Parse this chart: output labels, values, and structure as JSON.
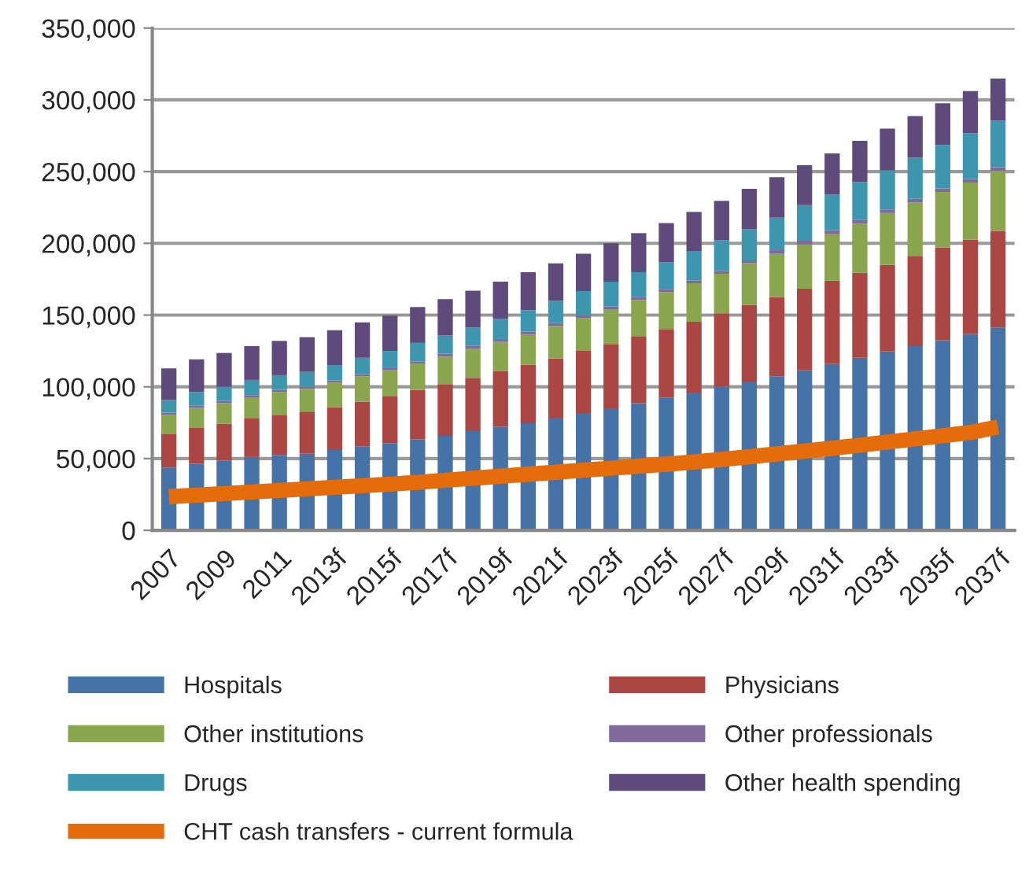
{
  "chart_data": {
    "type": "bar",
    "stacked": true,
    "categories": [
      "2007",
      null,
      "2009",
      null,
      "2011",
      null,
      "2013f",
      null,
      "2015f",
      null,
      "2017f",
      null,
      "2019f",
      null,
      "2021f",
      null,
      "2023f",
      null,
      "2025f",
      null,
      "2027f",
      null,
      "2029f",
      null,
      "2031f",
      null,
      "2033f",
      null,
      "2035f",
      null,
      "2037f"
    ],
    "series": [
      {
        "name": "Hospitals",
        "color": "#4572a7",
        "values": [
          43700,
          46300,
          48500,
          51100,
          52600,
          53300,
          55900,
          58500,
          60700,
          63300,
          65800,
          69100,
          72100,
          74600,
          78400,
          81700,
          85000,
          88600,
          92300,
          96000,
          100000,
          103700,
          107400,
          111500,
          115900,
          120300,
          124700,
          128400,
          132500,
          136900,
          141300
        ]
      },
      {
        "name": "Physicians",
        "color": "#aa4643",
        "values": [
          23200,
          25000,
          25800,
          27200,
          27900,
          29400,
          29800,
          31200,
          33000,
          34500,
          36100,
          37200,
          38900,
          40900,
          41500,
          43300,
          44800,
          46700,
          47900,
          49300,
          51200,
          53400,
          55200,
          56900,
          58100,
          59200,
          60300,
          62900,
          64600,
          65700,
          67300
        ]
      },
      {
        "name": "Other institutions",
        "color": "#89a54e",
        "values": [
          13600,
          14000,
          14300,
          14400,
          15900,
          15900,
          17300,
          17700,
          17800,
          18400,
          19100,
          20200,
          20300,
          20900,
          22500,
          22900,
          24300,
          25100,
          25700,
          26900,
          27600,
          29000,
          30100,
          30900,
          32700,
          34200,
          36100,
          37200,
          38700,
          39800,
          42000
        ]
      },
      {
        "name": "Other professionals",
        "color": "#80699b",
        "values": [
          1500,
          1500,
          1500,
          1500,
          1500,
          1500,
          1500,
          1500,
          1500,
          1500,
          2000,
          2000,
          2000,
          2000,
          2000,
          2000,
          2000,
          2000,
          2000,
          2000,
          2000,
          2000,
          2500,
          2500,
          2500,
          2500,
          2500,
          2500,
          2500,
          2500,
          2500
        ]
      },
      {
        "name": "Drugs",
        "color": "#3d96ae",
        "values": [
          8800,
          9600,
          9900,
          10600,
          10200,
          10300,
          10600,
          11400,
          12000,
          12900,
          12700,
          12800,
          14200,
          15000,
          15600,
          16800,
          17200,
          17500,
          19000,
          20100,
          21500,
          21900,
          22600,
          24800,
          24800,
          26600,
          27300,
          28700,
          30200,
          31700,
          32300
        ]
      },
      {
        "name": "Other health spending",
        "color": "#5f4a7c",
        "values": [
          22100,
          22800,
          23600,
          23600,
          23900,
          24200,
          24300,
          24600,
          24700,
          25000,
          25400,
          25700,
          25800,
          26500,
          26100,
          26000,
          26800,
          27200,
          27200,
          27600,
          27300,
          28000,
          28300,
          27900,
          28700,
          28700,
          29000,
          29000,
          29100,
          29500,
          29500
        ]
      },
      {
        "name": "CHT cash transfers - current formula",
        "type": "line",
        "color": "#e46c0a",
        "values": [
          23500,
          24500,
          25600,
          26700,
          27800,
          28900,
          30000,
          31100,
          32200,
          33400,
          34900,
          36300,
          37700,
          39100,
          40500,
          41900,
          43300,
          44700,
          46100,
          47600,
          49400,
          51300,
          53200,
          55200,
          57200,
          59300,
          61500,
          63700,
          65900,
          68200,
          72000
        ]
      }
    ],
    "ylim": [
      0,
      350000
    ],
    "yticks": [
      {
        "value": 0,
        "label": "0"
      },
      {
        "value": 50000,
        "label": "50,000"
      },
      {
        "value": 100000,
        "label": "100,000"
      },
      {
        "value": 150000,
        "label": "150,000"
      },
      {
        "value": 200000,
        "label": "200,000"
      },
      {
        "value": 250000,
        "label": "250,000"
      },
      {
        "value": 300000,
        "label": "300,000"
      },
      {
        "value": 350000,
        "label": "350,000"
      }
    ],
    "grid": "y",
    "legend": "bottom",
    "marker": "none",
    "line_style": "solid"
  }
}
